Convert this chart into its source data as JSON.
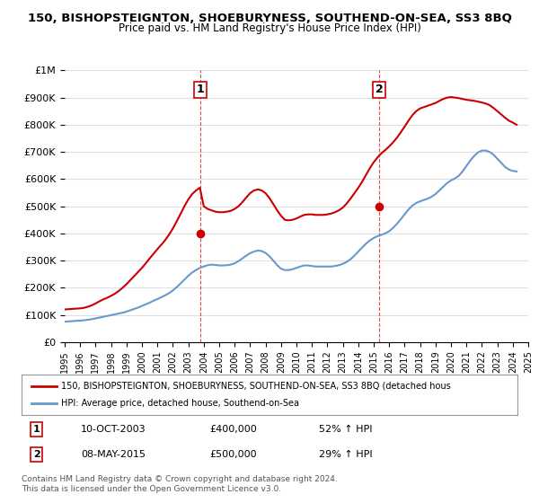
{
  "title": "150, BISHOPSTEIGNTON, SHOEBURYNESS, SOUTHEND-ON-SEA, SS3 8BQ",
  "subtitle": "Price paid vs. HM Land Registry's House Price Index (HPI)",
  "ylim": [
    0,
    1000000
  ],
  "yticks": [
    0,
    100000,
    200000,
    300000,
    400000,
    500000,
    600000,
    700000,
    800000,
    900000,
    1000000
  ],
  "ytick_labels": [
    "£0",
    "£100K",
    "£200K",
    "£300K",
    "£400K",
    "£500K",
    "£600K",
    "£700K",
    "£800K",
    "£900K",
    "£1M"
  ],
  "background_color": "#ffffff",
  "grid_color": "#e0e0e0",
  "sale_color": "#cc0000",
  "hpi_color": "#6699cc",
  "legend_sale": "150, BISHOPSTEIGNTON, SHOEBURYNESS, SOUTHEND-ON-SEA, SS3 8BQ (detached hous",
  "legend_hpi": "HPI: Average price, detached house, Southend-on-Sea",
  "annotation1_label": "1",
  "annotation1_date": "10-OCT-2003",
  "annotation1_price": 400000,
  "annotation1_pct": "52% ↑ HPI",
  "annotation2_label": "2",
  "annotation2_date": "08-MAY-2015",
  "annotation2_price": 500000,
  "annotation2_pct": "29% ↑ HPI",
  "footnote": "Contains HM Land Registry data © Crown copyright and database right 2024.\nThis data is licensed under the Open Government Licence v3.0.",
  "sale_years": [
    2003.78,
    2015.36
  ],
  "sale_prices": [
    400000,
    500000
  ],
  "hpi_years": [
    1995.0,
    1995.25,
    1995.5,
    1995.75,
    1996.0,
    1996.25,
    1996.5,
    1996.75,
    1997.0,
    1997.25,
    1997.5,
    1997.75,
    1998.0,
    1998.25,
    1998.5,
    1998.75,
    1999.0,
    1999.25,
    1999.5,
    1999.75,
    2000.0,
    2000.25,
    2000.5,
    2000.75,
    2001.0,
    2001.25,
    2001.5,
    2001.75,
    2002.0,
    2002.25,
    2002.5,
    2002.75,
    2003.0,
    2003.25,
    2003.5,
    2003.75,
    2004.0,
    2004.25,
    2004.5,
    2004.75,
    2005.0,
    2005.25,
    2005.5,
    2005.75,
    2006.0,
    2006.25,
    2006.5,
    2006.75,
    2007.0,
    2007.25,
    2007.5,
    2007.75,
    2008.0,
    2008.25,
    2008.5,
    2008.75,
    2009.0,
    2009.25,
    2009.5,
    2009.75,
    2010.0,
    2010.25,
    2010.5,
    2010.75,
    2011.0,
    2011.25,
    2011.5,
    2011.75,
    2012.0,
    2012.25,
    2012.5,
    2012.75,
    2013.0,
    2013.25,
    2013.5,
    2013.75,
    2014.0,
    2014.25,
    2014.5,
    2014.75,
    2015.0,
    2015.25,
    2015.5,
    2015.75,
    2016.0,
    2016.25,
    2016.5,
    2016.75,
    2017.0,
    2017.25,
    2017.5,
    2017.75,
    2018.0,
    2018.25,
    2018.5,
    2018.75,
    2019.0,
    2019.25,
    2019.5,
    2019.75,
    2020.0,
    2020.25,
    2020.5,
    2020.75,
    2021.0,
    2021.25,
    2021.5,
    2021.75,
    2022.0,
    2022.25,
    2022.5,
    2022.75,
    2023.0,
    2023.25,
    2023.5,
    2023.75,
    2024.0,
    2024.25
  ],
  "hpi_values": [
    75000,
    76000,
    77000,
    78000,
    79000,
    80000,
    82000,
    84000,
    87000,
    90000,
    93000,
    96000,
    99000,
    102000,
    105000,
    108000,
    112000,
    117000,
    122000,
    127000,
    133000,
    139000,
    145000,
    152000,
    158000,
    165000,
    172000,
    180000,
    190000,
    202000,
    216000,
    230000,
    244000,
    256000,
    265000,
    273000,
    278000,
    283000,
    285000,
    284000,
    282000,
    282000,
    283000,
    285000,
    290000,
    298000,
    308000,
    318000,
    327000,
    333000,
    337000,
    335000,
    328000,
    316000,
    300000,
    283000,
    270000,
    265000,
    265000,
    268000,
    273000,
    278000,
    282000,
    282000,
    280000,
    278000,
    278000,
    278000,
    278000,
    278000,
    280000,
    283000,
    288000,
    295000,
    305000,
    318000,
    333000,
    348000,
    362000,
    374000,
    383000,
    390000,
    395000,
    400000,
    408000,
    420000,
    435000,
    452000,
    470000,
    488000,
    502000,
    512000,
    518000,
    523000,
    528000,
    535000,
    545000,
    558000,
    572000,
    585000,
    595000,
    602000,
    612000,
    628000,
    648000,
    668000,
    685000,
    698000,
    705000,
    705000,
    700000,
    690000,
    675000,
    660000,
    645000,
    635000,
    630000,
    628000
  ],
  "red_years": [
    1995.0,
    1995.25,
    1995.5,
    1995.75,
    1996.0,
    1996.25,
    1996.5,
    1996.75,
    1997.0,
    1997.25,
    1997.5,
    1997.75,
    1998.0,
    1998.25,
    1998.5,
    1998.75,
    1999.0,
    1999.25,
    1999.5,
    1999.75,
    2000.0,
    2000.25,
    2000.5,
    2000.75,
    2001.0,
    2001.25,
    2001.5,
    2001.75,
    2002.0,
    2002.25,
    2002.5,
    2002.75,
    2003.0,
    2003.25,
    2003.5,
    2003.75,
    2004.0,
    2004.25,
    2004.5,
    2004.75,
    2005.0,
    2005.25,
    2005.5,
    2005.75,
    2006.0,
    2006.25,
    2006.5,
    2006.75,
    2007.0,
    2007.25,
    2007.5,
    2007.75,
    2008.0,
    2008.25,
    2008.5,
    2008.75,
    2009.0,
    2009.25,
    2009.5,
    2009.75,
    2010.0,
    2010.25,
    2010.5,
    2010.75,
    2011.0,
    2011.25,
    2011.5,
    2011.75,
    2012.0,
    2012.25,
    2012.5,
    2012.75,
    2013.0,
    2013.25,
    2013.5,
    2013.75,
    2014.0,
    2014.25,
    2014.5,
    2014.75,
    2015.0,
    2015.25,
    2015.5,
    2015.75,
    2016.0,
    2016.25,
    2016.5,
    2016.75,
    2017.0,
    2017.25,
    2017.5,
    2017.75,
    2018.0,
    2018.25,
    2018.5,
    2018.75,
    2019.0,
    2019.25,
    2019.5,
    2019.75,
    2020.0,
    2020.25,
    2020.5,
    2020.75,
    2021.0,
    2021.25,
    2021.5,
    2021.75,
    2022.0,
    2022.25,
    2022.5,
    2022.75,
    2023.0,
    2023.25,
    2023.5,
    2023.75,
    2024.0,
    2024.25
  ],
  "red_values": [
    120000,
    121000,
    122000,
    123000,
    124000,
    126000,
    130000,
    135000,
    142000,
    150000,
    157000,
    163000,
    170000,
    178000,
    188000,
    200000,
    213000,
    228000,
    243000,
    258000,
    273000,
    290000,
    308000,
    325000,
    342000,
    358000,
    375000,
    395000,
    418000,
    444000,
    472000,
    500000,
    525000,
    545000,
    558000,
    568000,
    500000,
    490000,
    485000,
    480000,
    478000,
    478000,
    480000,
    483000,
    490000,
    500000,
    515000,
    532000,
    548000,
    558000,
    562000,
    558000,
    548000,
    530000,
    508000,
    485000,
    465000,
    450000,
    448000,
    450000,
    455000,
    462000,
    468000,
    470000,
    470000,
    468000,
    468000,
    468000,
    470000,
    473000,
    478000,
    485000,
    495000,
    510000,
    528000,
    548000,
    568000,
    590000,
    615000,
    640000,
    662000,
    680000,
    695000,
    707000,
    720000,
    735000,
    752000,
    772000,
    793000,
    815000,
    835000,
    850000,
    860000,
    865000,
    870000,
    875000,
    880000,
    888000,
    895000,
    900000,
    902000,
    900000,
    898000,
    895000,
    892000,
    890000,
    888000,
    885000,
    882000,
    878000,
    872000,
    862000,
    850000,
    838000,
    826000,
    815000,
    808000,
    800000
  ]
}
